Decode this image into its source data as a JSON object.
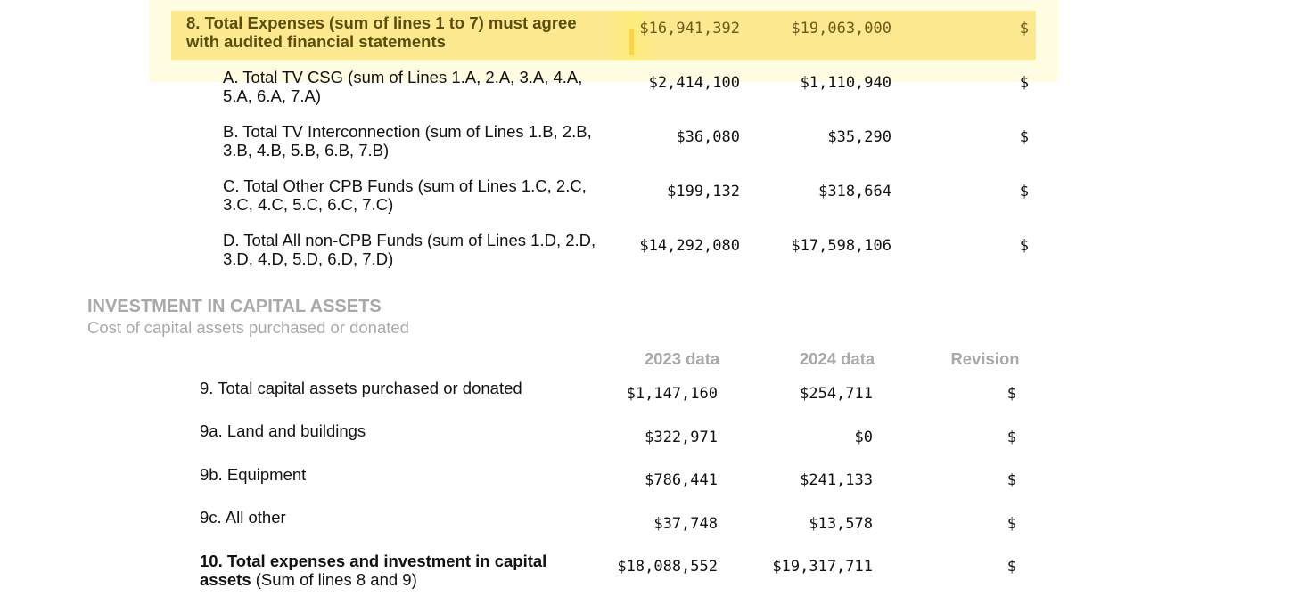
{
  "expenses": {
    "total_row": {
      "label": "8. Total Expenses (sum of lines 1 to 7) must agree with audited financial statements",
      "v2023": "$16,941,392",
      "v2024": "$19,063,000",
      "revision": "$"
    },
    "rows": [
      {
        "label": "A. Total TV CSG (sum of Lines 1.A, 2.A, 3.A, 4.A, 5.A, 6.A, 7.A)",
        "v2023": "$2,414,100",
        "v2024": "$1,110,940",
        "revision": "$"
      },
      {
        "label": "B. Total TV Interconnection (sum of Lines 1.B, 2.B, 3.B, 4.B, 5.B, 6.B, 7.B)",
        "v2023": "$36,080",
        "v2024": "$35,290",
        "revision": "$"
      },
      {
        "label": "C. Total Other CPB Funds (sum of Lines 1.C, 2.C, 3.C, 4.C, 5.C, 6.C, 7.C)",
        "v2023": "$199,132",
        "v2024": "$318,664",
        "revision": "$"
      },
      {
        "label": "D. Total All non-CPB Funds (sum of Lines 1.D, 2.D, 3.D, 4.D, 5.D, 6.D, 7.D)",
        "v2023": "$14,292,080",
        "v2024": "$17,598,106",
        "revision": "$"
      }
    ]
  },
  "capital": {
    "title": "INVESTMENT IN CAPITAL ASSETS",
    "subtitle": "Cost of capital assets purchased or donated",
    "headers": {
      "col_2023": "2023 data",
      "col_2024": "2024 data",
      "col_revision": "Revision"
    },
    "rows": [
      {
        "label": "9. Total capital assets purchased or donated",
        "v2023": "$1,147,160",
        "v2024": "$254,711",
        "revision": "$"
      },
      {
        "label": "9a. Land and buildings",
        "v2023": "$322,971",
        "v2024": "$0",
        "revision": "$"
      },
      {
        "label": "9b. Equipment",
        "v2023": "$786,441",
        "v2024": "$241,133",
        "revision": "$"
      },
      {
        "label": "9c. All other",
        "v2023": "$37,748",
        "v2024": "$13,578",
        "revision": "$"
      }
    ],
    "total": {
      "label_bold": "10. Total expenses and investment in capital assets",
      "label_rest": "(Sum of lines 8 and 9)",
      "v2023": "$18,088,552",
      "v2024": "$19,317,711",
      "revision": "$"
    }
  }
}
